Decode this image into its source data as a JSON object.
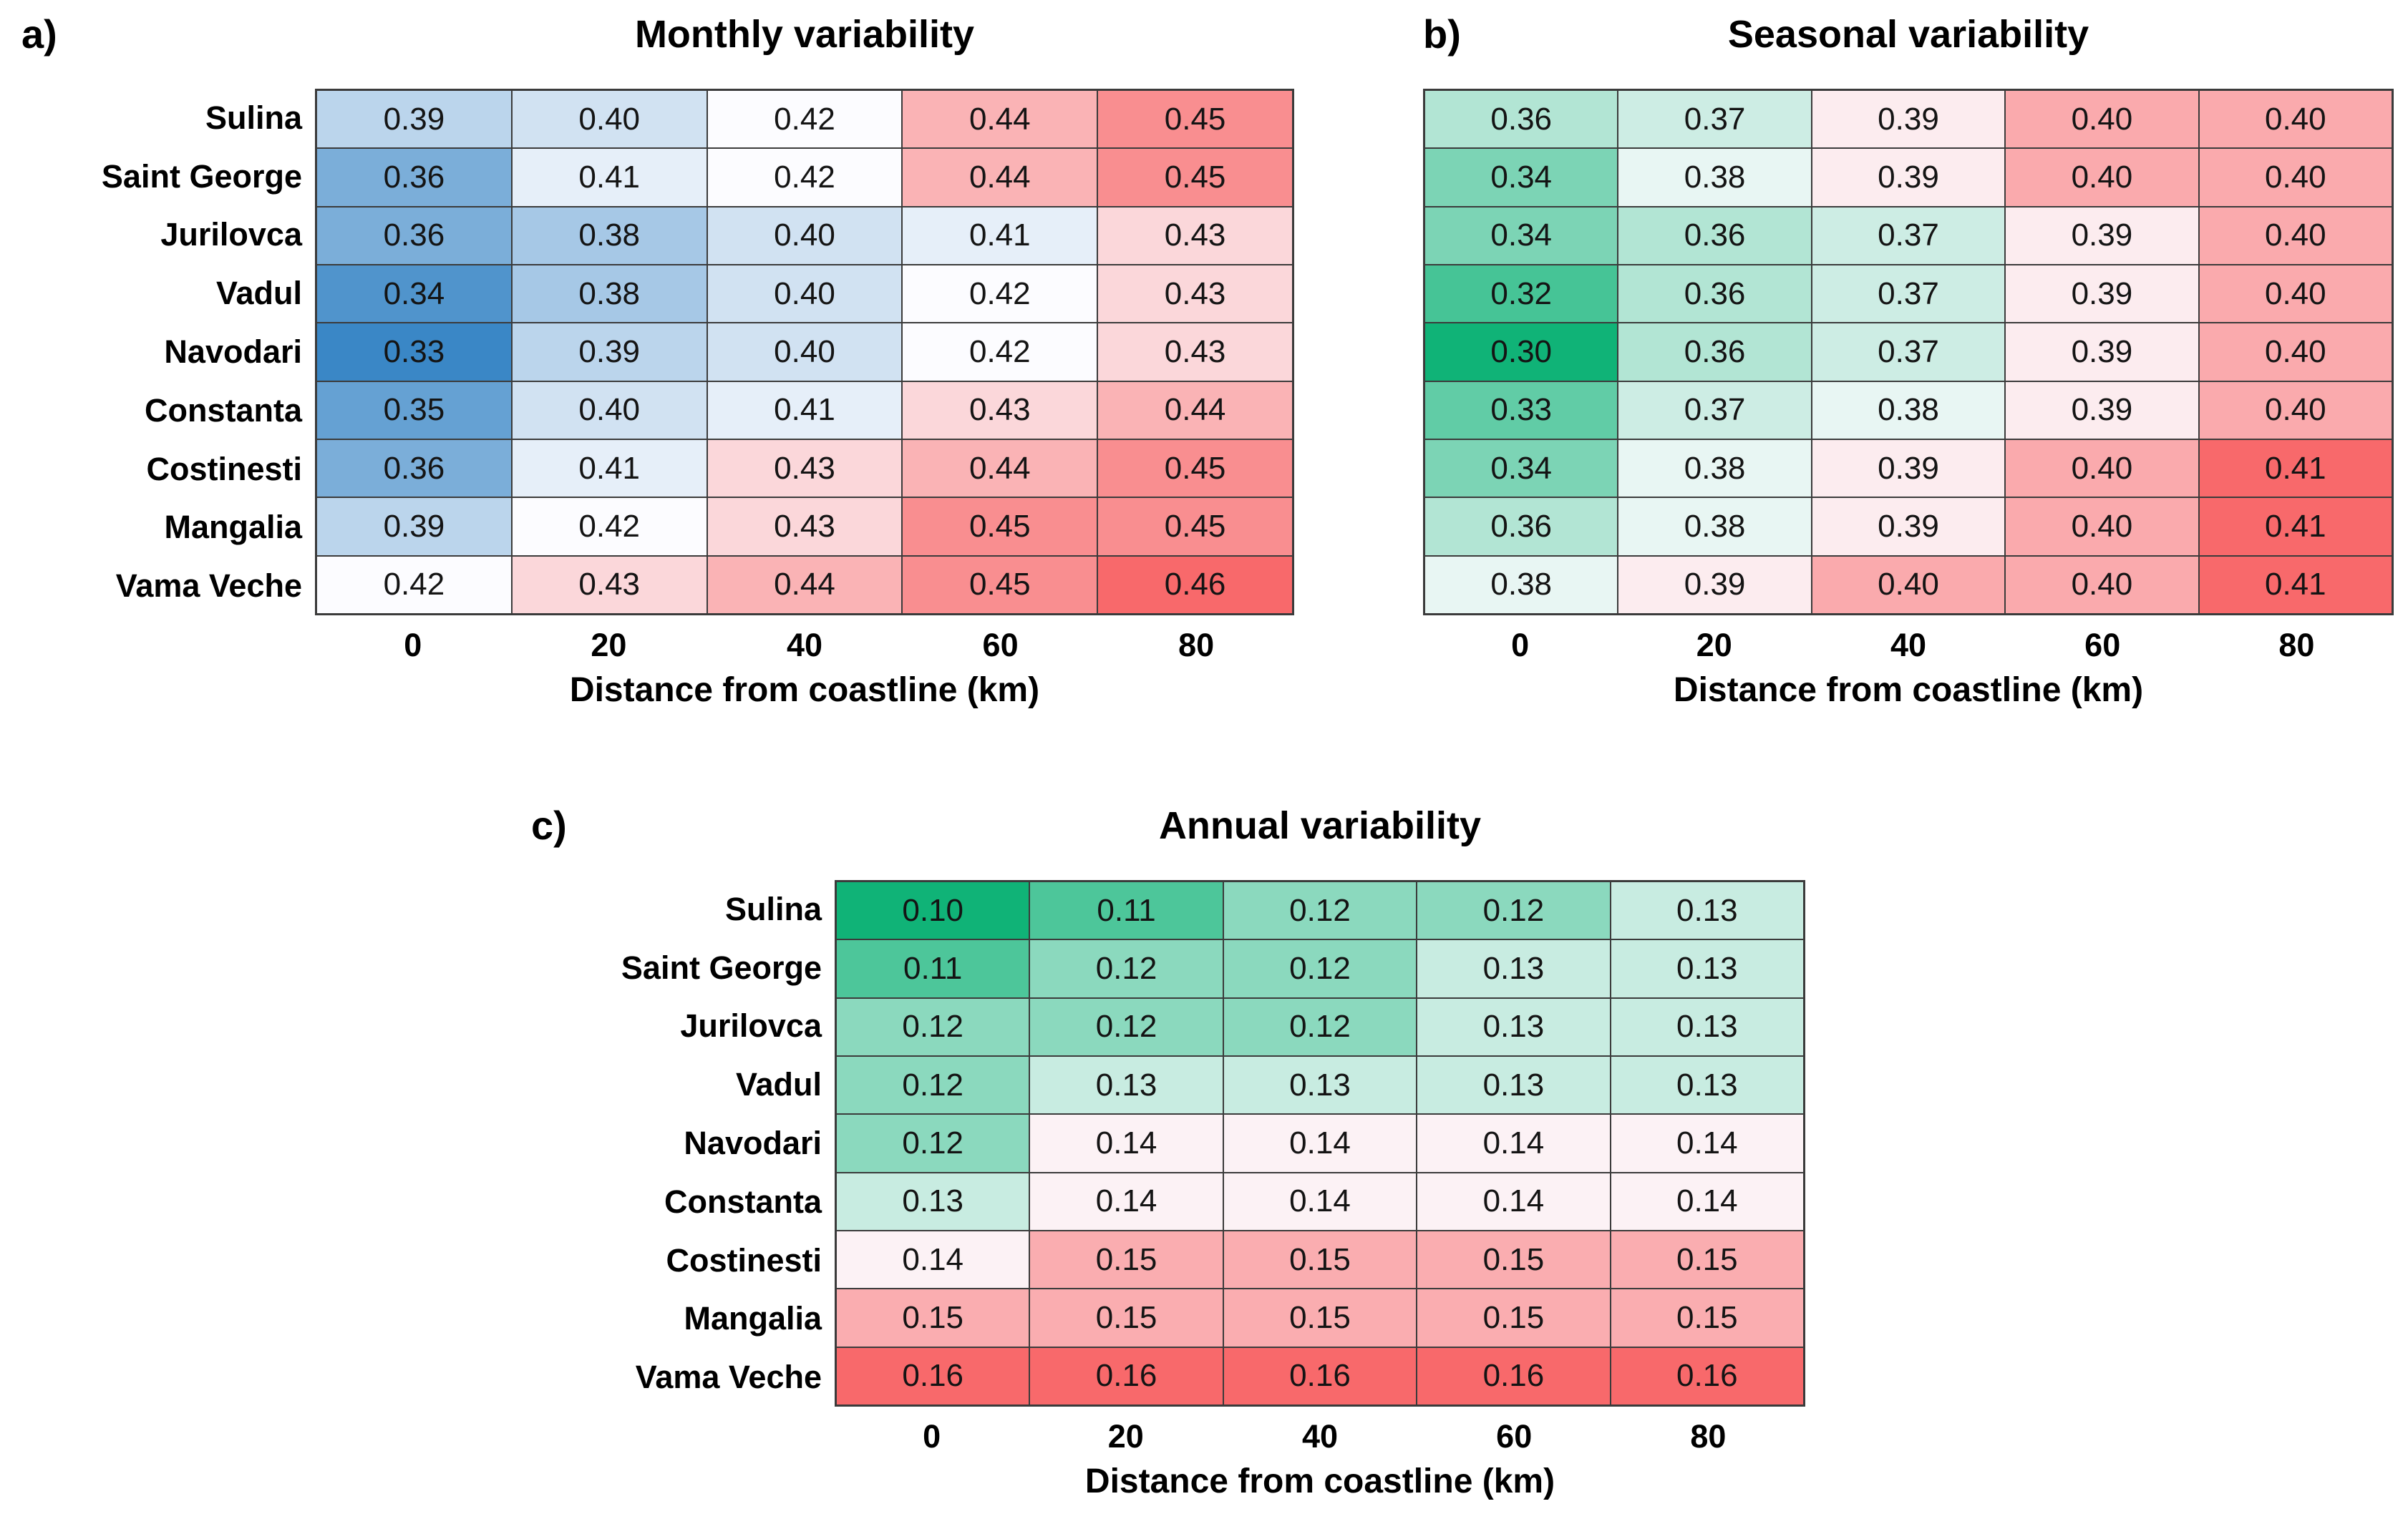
{
  "page": {
    "background": "#FFFFFF"
  },
  "chart_data": [
    {
      "type": "heatmap",
      "panel_label": "a)",
      "title": "Monthly variability",
      "xlabel": "Distance from coastline (km)",
      "x_ticks": [
        "0",
        "20",
        "40",
        "60",
        "80"
      ],
      "rows": [
        "Sulina",
        "Saint George",
        "Jurilovca",
        "Vadul",
        "Navodari",
        "Constanta",
        "Costinesti",
        "Mangalia",
        "Vama Veche"
      ],
      "show_row_labels": true,
      "value_decimals": 2,
      "values": [
        [
          0.39,
          0.4,
          0.42,
          0.44,
          0.45
        ],
        [
          0.36,
          0.41,
          0.42,
          0.44,
          0.45
        ],
        [
          0.36,
          0.38,
          0.4,
          0.41,
          0.43
        ],
        [
          0.34,
          0.38,
          0.4,
          0.42,
          0.43
        ],
        [
          0.33,
          0.39,
          0.4,
          0.42,
          0.43
        ],
        [
          0.35,
          0.4,
          0.41,
          0.43,
          0.44
        ],
        [
          0.36,
          0.41,
          0.43,
          0.44,
          0.45
        ],
        [
          0.39,
          0.42,
          0.43,
          0.45,
          0.45
        ],
        [
          0.42,
          0.43,
          0.44,
          0.45,
          0.46
        ]
      ],
      "colormap": {
        "description": "diverging blue-white-red",
        "low": "#3A87C6",
        "mid": "#FCFCFF",
        "high": "#F8696B",
        "domain": [
          0.33,
          0.42,
          0.46
        ]
      }
    },
    {
      "type": "heatmap",
      "panel_label": "b)",
      "title": "Seasonal variability",
      "xlabel": "Distance from coastline (km)",
      "x_ticks": [
        "0",
        "20",
        "40",
        "60",
        "80"
      ],
      "rows": [
        "Sulina",
        "Saint George",
        "Jurilovca",
        "Vadul",
        "Navodari",
        "Constanta",
        "Costinesti",
        "Mangalia",
        "Vama Veche"
      ],
      "show_row_labels": false,
      "value_decimals": 2,
      "values": [
        [
          0.36,
          0.37,
          0.39,
          0.4,
          0.4
        ],
        [
          0.34,
          0.38,
          0.39,
          0.4,
          0.4
        ],
        [
          0.34,
          0.36,
          0.37,
          0.39,
          0.4
        ],
        [
          0.32,
          0.36,
          0.37,
          0.39,
          0.4
        ],
        [
          0.3,
          0.36,
          0.37,
          0.39,
          0.4
        ],
        [
          0.33,
          0.37,
          0.38,
          0.39,
          0.4
        ],
        [
          0.34,
          0.38,
          0.39,
          0.4,
          0.41
        ],
        [
          0.36,
          0.38,
          0.39,
          0.4,
          0.41
        ],
        [
          0.38,
          0.39,
          0.4,
          0.4,
          0.41
        ]
      ],
      "colormap": {
        "description": "diverging green-white-red",
        "low": "#10B377",
        "mid": "#FCFCFF",
        "high": "#F8696B",
        "domain": [
          0.3,
          0.3875,
          0.41
        ]
      }
    },
    {
      "type": "heatmap",
      "panel_label": "c)",
      "title": "Annual variability",
      "xlabel": "Distance from coastline (km)",
      "x_ticks": [
        "0",
        "20",
        "40",
        "60",
        "80"
      ],
      "rows": [
        "Sulina",
        "Saint George",
        "Jurilovca",
        "Vadul",
        "Navodari",
        "Constanta",
        "Costinesti",
        "Mangalia",
        "Vama Veche"
      ],
      "show_row_labels": true,
      "value_decimals": 2,
      "values": [
        [
          0.1,
          0.11,
          0.12,
          0.12,
          0.13
        ],
        [
          0.11,
          0.12,
          0.12,
          0.13,
          0.13
        ],
        [
          0.12,
          0.12,
          0.12,
          0.13,
          0.13
        ],
        [
          0.12,
          0.13,
          0.13,
          0.13,
          0.13
        ],
        [
          0.12,
          0.14,
          0.14,
          0.14,
          0.14
        ],
        [
          0.13,
          0.14,
          0.14,
          0.14,
          0.14
        ],
        [
          0.14,
          0.15,
          0.15,
          0.15,
          0.15
        ],
        [
          0.15,
          0.15,
          0.15,
          0.15,
          0.15
        ],
        [
          0.16,
          0.16,
          0.16,
          0.16,
          0.16
        ]
      ],
      "colormap": {
        "description": "diverging green-white-red",
        "low": "#10B377",
        "mid": "#FCFCFF",
        "high": "#F8696B",
        "domain": [
          0.1,
          0.1385,
          0.16
        ]
      }
    }
  ]
}
